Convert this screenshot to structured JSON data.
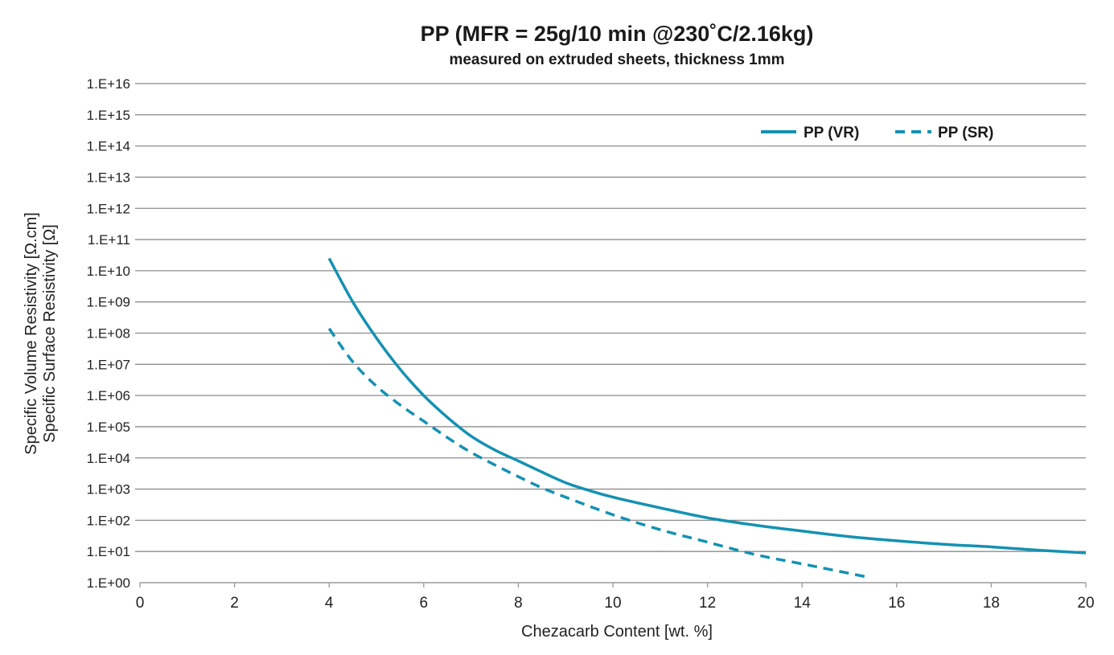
{
  "chart_data": {
    "type": "line",
    "title": "PP (MFR = 25g/10 min @230˚C/2.16kg)",
    "subtitle": "measured on extruded sheets, thickness 1mm",
    "xlabel": "Chezacarb Content [wt. %]",
    "ylabel_line1": "Specific Volume Resistivity [Ω.cm]",
    "ylabel_line2": "Specific Surface Resistivity [Ω]",
    "xlim": [
      0,
      20
    ],
    "ylim": [
      1,
      1e+16
    ],
    "yscale": "log",
    "grid": "horizontal",
    "legend_position": "top-right",
    "x_ticks": [
      "0",
      "2",
      "4",
      "6",
      "8",
      "10",
      "12",
      "14",
      "16",
      "18",
      "20"
    ],
    "y_ticks": [
      "1.E+00",
      "1.E+01",
      "1.E+02",
      "1.E+03",
      "1.E+04",
      "1.E+05",
      "1.E+06",
      "1.E+07",
      "1.E+08",
      "1.E+09",
      "1.E+10",
      "1.E+11",
      "1.E+12",
      "1.E+13",
      "1.E+14",
      "1.E+15",
      "1.E+16"
    ],
    "series": [
      {
        "name": "PP (VR)",
        "style": "solid",
        "color": "#1591b2",
        "x": [
          4.0,
          4.5,
          5.0,
          5.5,
          6.0,
          6.5,
          7.0,
          7.5,
          8.0,
          8.5,
          9.0,
          9.5,
          10.0,
          11.0,
          12.0,
          13.0,
          14.0,
          15.0,
          16.0,
          17.0,
          18.0,
          19.0,
          20.0
        ],
        "y": [
          25000000000.0,
          1000000000.0,
          70000000.0,
          7000000.0,
          1000000.0,
          200000.0,
          50000.0,
          18000.0,
          8000.0,
          3500.0,
          1600.0,
          900.0,
          550.0,
          250.0,
          120.0,
          70.0,
          45.0,
          30.0,
          22.0,
          17.0,
          14.0,
          11.0,
          9.0
        ]
      },
      {
        "name": "PP (SR)",
        "style": "dashed",
        "color": "#1591b2",
        "x": [
          4.0,
          4.5,
          5.0,
          5.5,
          6.0,
          6.5,
          7.0,
          7.5,
          8.0,
          8.5,
          9.0,
          10.0,
          11.0,
          12.0,
          13.0,
          14.0,
          15.4
        ],
        "y": [
          140000000.0,
          12000000.0,
          2000000.0,
          500000.0,
          150000.0,
          45000.0,
          15000.0,
          6000.0,
          2500.0,
          1100.0,
          550.0,
          150.0,
          50.0,
          20.0,
          8.0,
          4.0,
          1.5
        ]
      }
    ]
  }
}
